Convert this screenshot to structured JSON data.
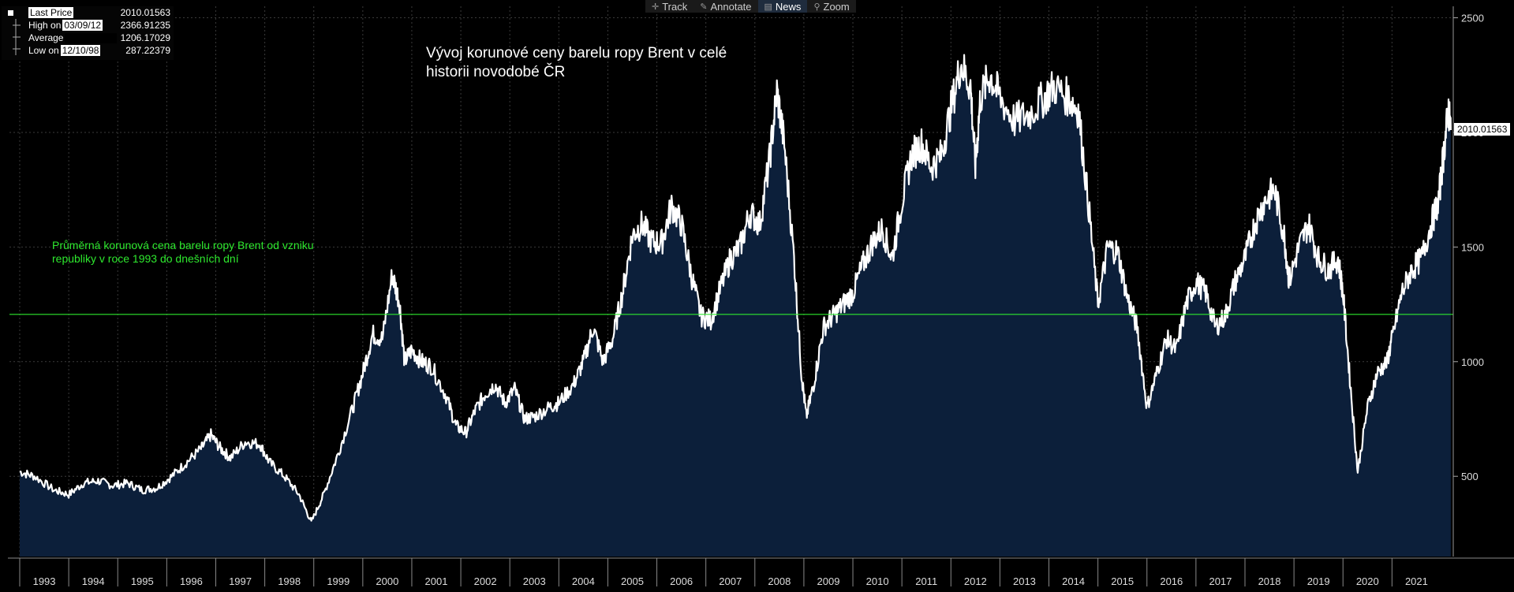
{
  "toolbar": {
    "items": [
      {
        "label": "Track",
        "icon": "crosshair-icon"
      },
      {
        "label": "Annotate",
        "icon": "pencil-icon"
      },
      {
        "label": "News",
        "icon": "news-icon",
        "active": true
      },
      {
        "label": "Zoom",
        "icon": "magnifier-icon"
      }
    ]
  },
  "legend": {
    "last_price_label": "Last Price",
    "last_price_value": "2010.01563",
    "high_label": "High on",
    "high_date": "03/09/12",
    "high_value": "2366.91235",
    "average_label": "Average",
    "average_value": "1206.17029",
    "low_label": "Low on",
    "low_date": "12/10/98",
    "low_value": "287.22379"
  },
  "title_line1": "Vývoj korunové ceny barelu ropy Brent v celé",
  "title_line2": "historii novodobé ČR",
  "average_annotation_line1": "Průměrná korunová cena barelu ropy Brent od vzniku",
  "average_annotation_line2": "republiky v roce 1993 do dnešních dní",
  "last_value_label": "2010.01563",
  "colors": {
    "background": "#000000",
    "line": "#ffffff",
    "area_fill": "#0c1f3a",
    "average_line": "#2ee82e",
    "grid": "#3a3a3a"
  },
  "chart_data": {
    "type": "area",
    "title": "Vývoj korunové ceny barelu ropy Brent v celé historii novodobé ČR",
    "ylim": [
      150,
      2550
    ],
    "yticks": [
      500,
      1000,
      1500,
      2000,
      2500
    ],
    "xlim": [
      1993.0,
      2021.5
    ],
    "x_tick_labels": [
      "1993",
      "1994",
      "1995",
      "1996",
      "1997",
      "1998",
      "1999",
      "2000",
      "2001",
      "2002",
      "2003",
      "2004",
      "2005",
      "2006",
      "2007",
      "2008",
      "2009",
      "2010",
      "2011",
      "2012",
      "2013",
      "2014",
      "2015",
      "2016",
      "2017",
      "2018",
      "2019",
      "2020",
      "2021"
    ],
    "average": 1206.17029,
    "grid": true,
    "series": [
      {
        "points": [
          [
            1993.0,
            520
          ],
          [
            1993.3,
            500
          ],
          [
            1993.7,
            440
          ],
          [
            1994.0,
            420
          ],
          [
            1994.3,
            470
          ],
          [
            1994.6,
            480
          ],
          [
            1994.9,
            460
          ],
          [
            1995.2,
            470
          ],
          [
            1995.5,
            440
          ],
          [
            1995.8,
            450
          ],
          [
            1996.1,
            500
          ],
          [
            1996.4,
            560
          ],
          [
            1996.7,
            620
          ],
          [
            1996.9,
            680
          ],
          [
            1997.1,
            620
          ],
          [
            1997.3,
            580
          ],
          [
            1997.6,
            650
          ],
          [
            1997.9,
            640
          ],
          [
            1998.1,
            560
          ],
          [
            1998.4,
            500
          ],
          [
            1998.7,
            420
          ],
          [
            1998.95,
            300
          ],
          [
            1999.2,
            420
          ],
          [
            1999.5,
            600
          ],
          [
            1999.8,
            800
          ],
          [
            2000.0,
            950
          ],
          [
            2000.2,
            1120
          ],
          [
            2000.4,
            1100
          ],
          [
            2000.6,
            1380
          ],
          [
            2000.75,
            1260
          ],
          [
            2000.85,
            1000
          ],
          [
            2001.0,
            1050
          ],
          [
            2001.2,
            1000
          ],
          [
            2001.4,
            980
          ],
          [
            2001.7,
            850
          ],
          [
            2001.9,
            720
          ],
          [
            2002.1,
            690
          ],
          [
            2002.3,
            790
          ],
          [
            2002.5,
            860
          ],
          [
            2002.7,
            900
          ],
          [
            2002.9,
            820
          ],
          [
            2003.1,
            880
          ],
          [
            2003.3,
            750
          ],
          [
            2003.5,
            760
          ],
          [
            2003.8,
            800
          ],
          [
            2004.0,
            820
          ],
          [
            2004.3,
            900
          ],
          [
            2004.5,
            1000
          ],
          [
            2004.7,
            1150
          ],
          [
            2004.9,
            1000
          ],
          [
            2005.1,
            1100
          ],
          [
            2005.3,
            1300
          ],
          [
            2005.5,
            1550
          ],
          [
            2005.7,
            1600
          ],
          [
            2005.9,
            1520
          ],
          [
            2006.1,
            1520
          ],
          [
            2006.3,
            1680
          ],
          [
            2006.5,
            1600
          ],
          [
            2006.7,
            1380
          ],
          [
            2006.9,
            1200
          ],
          [
            2007.1,
            1180
          ],
          [
            2007.3,
            1320
          ],
          [
            2007.5,
            1450
          ],
          [
            2007.7,
            1500
          ],
          [
            2007.9,
            1650
          ],
          [
            2008.1,
            1600
          ],
          [
            2008.3,
            1880
          ],
          [
            2008.45,
            2180
          ],
          [
            2008.6,
            1950
          ],
          [
            2008.8,
            1450
          ],
          [
            2008.95,
            950
          ],
          [
            2009.05,
            760
          ],
          [
            2009.2,
            900
          ],
          [
            2009.4,
            1150
          ],
          [
            2009.6,
            1200
          ],
          [
            2009.8,
            1250
          ],
          [
            2010.0,
            1300
          ],
          [
            2010.2,
            1420
          ],
          [
            2010.4,
            1520
          ],
          [
            2010.6,
            1580
          ],
          [
            2010.8,
            1450
          ],
          [
            2011.0,
            1700
          ],
          [
            2011.2,
            1900
          ],
          [
            2011.4,
            1950
          ],
          [
            2011.6,
            1850
          ],
          [
            2011.8,
            1900
          ],
          [
            2012.0,
            2100
          ],
          [
            2012.2,
            2300
          ],
          [
            2012.4,
            2200
          ],
          [
            2012.5,
            1850
          ],
          [
            2012.6,
            2150
          ],
          [
            2012.8,
            2250
          ],
          [
            2013.0,
            2150
          ],
          [
            2013.3,
            2050
          ],
          [
            2013.6,
            2080
          ],
          [
            2013.9,
            2150
          ],
          [
            2014.1,
            2200
          ],
          [
            2014.4,
            2150
          ],
          [
            2014.6,
            2100
          ],
          [
            2014.8,
            1700
          ],
          [
            2015.0,
            1250
          ],
          [
            2015.2,
            1500
          ],
          [
            2015.4,
            1480
          ],
          [
            2015.6,
            1280
          ],
          [
            2015.8,
            1150
          ],
          [
            2016.0,
            800
          ],
          [
            2016.2,
            950
          ],
          [
            2016.4,
            1100
          ],
          [
            2016.6,
            1050
          ],
          [
            2016.8,
            1250
          ],
          [
            2017.0,
            1350
          ],
          [
            2017.2,
            1300
          ],
          [
            2017.4,
            1150
          ],
          [
            2017.6,
            1200
          ],
          [
            2017.8,
            1350
          ],
          [
            2018.0,
            1450
          ],
          [
            2018.2,
            1600
          ],
          [
            2018.4,
            1700
          ],
          [
            2018.6,
            1750
          ],
          [
            2018.8,
            1550
          ],
          [
            2018.9,
            1350
          ],
          [
            2019.1,
            1500
          ],
          [
            2019.3,
            1600
          ],
          [
            2019.5,
            1450
          ],
          [
            2019.7,
            1400
          ],
          [
            2019.9,
            1450
          ],
          [
            2020.0,
            1300
          ],
          [
            2020.15,
            900
          ],
          [
            2020.3,
            520
          ],
          [
            2020.5,
            800
          ],
          [
            2020.7,
            950
          ],
          [
            2020.9,
            1000
          ],
          [
            2021.0,
            1100
          ],
          [
            2021.2,
            1300
          ],
          [
            2021.4,
            1400
          ],
          [
            2021.6,
            1450
          ],
          [
            2021.8,
            1600
          ],
          [
            2021.95,
            1700
          ],
          [
            2022.05,
            1900
          ],
          [
            2022.15,
            2100
          ],
          [
            2022.2,
            2010
          ]
        ]
      }
    ]
  }
}
